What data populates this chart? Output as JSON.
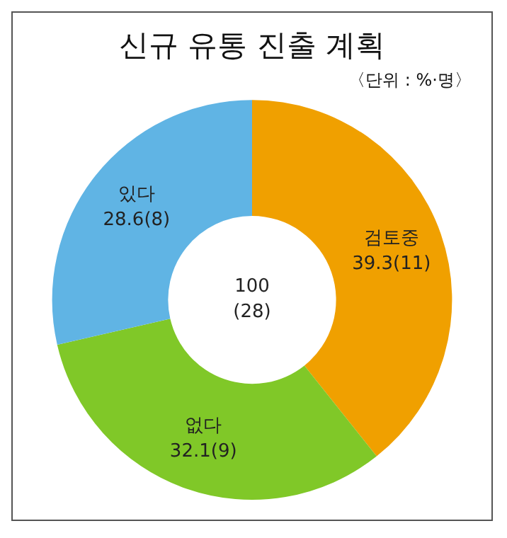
{
  "chart_data": {
    "type": "donut",
    "title": "신규 유통 진출 계획",
    "subtitle": "〈단위 : %·명〉",
    "categories": [
      "검토중",
      "없다",
      "있다"
    ],
    "values": [
      39.3,
      32.1,
      28.6
    ],
    "colors": [
      "#f0a000",
      "#80c828",
      "#60b4e4"
    ],
    "value_labels": [
      "39.3(11)",
      "32.1(9)",
      "28.6(8)"
    ],
    "annotations": [
      "100",
      "(28)"
    ],
    "legend": false
  }
}
